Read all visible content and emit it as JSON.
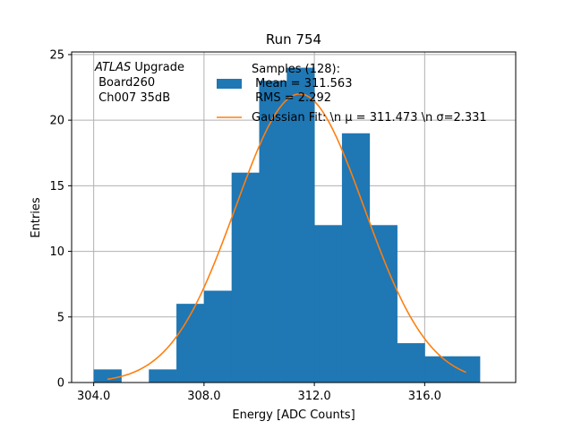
{
  "chart_data": {
    "type": "histogram",
    "title": "Run 754",
    "xlabel": "Energy [ADC Counts]",
    "ylabel": "Entries",
    "xlim": [
      303.2,
      319.3
    ],
    "ylim": [
      0,
      25.2
    ],
    "grid": true,
    "xticks": [
      304.0,
      308.0,
      312.0,
      316.0
    ],
    "xtick_labels": [
      "304.0",
      "308.0",
      "312.0",
      "316.0"
    ],
    "yticks": [
      0,
      5,
      10,
      15,
      20,
      25
    ],
    "ytick_labels": [
      "0",
      "5",
      "10",
      "15",
      "20",
      "25"
    ],
    "bins": [
      {
        "x0": 304,
        "x1": 305,
        "count": 1
      },
      {
        "x0": 305,
        "x1": 306,
        "count": 0
      },
      {
        "x0": 306,
        "x1": 307,
        "count": 1
      },
      {
        "x0": 307,
        "x1": 308,
        "count": 6
      },
      {
        "x0": 308,
        "x1": 309,
        "count": 7
      },
      {
        "x0": 309,
        "x1": 310,
        "count": 16
      },
      {
        "x0": 310,
        "x1": 311,
        "count": 23
      },
      {
        "x0": 311,
        "x1": 312,
        "count": 24
      },
      {
        "x0": 312,
        "x1": 313,
        "count": 12
      },
      {
        "x0": 313,
        "x1": 314,
        "count": 19
      },
      {
        "x0": 314,
        "x1": 315,
        "count": 12
      },
      {
        "x0": 315,
        "x1": 316,
        "count": 3
      },
      {
        "x0": 316,
        "x1": 317,
        "count": 2
      },
      {
        "x0": 317,
        "x1": 318,
        "count": 2
      }
    ],
    "fit": {
      "mu": 311.473,
      "sigma": 2.331,
      "amplitude": 22.0,
      "x_start": 304.5,
      "x_end": 317.5
    },
    "colors": {
      "bars": "#1f77b4",
      "fit": "#ff7f0e",
      "grid": "#b0b0b0"
    },
    "annotation": {
      "line1_italic": "ATLAS",
      "line1_rest": " Upgrade",
      "line2": " Board260",
      "line3": " Ch007 35dB"
    },
    "legend": {
      "position": "top-right",
      "hist_lines": [
        "Samples (128):",
        " Mean = 311.563",
        " RMS = 2.292"
      ],
      "fit_label": "Gaussian Fit: \\n μ = 311.473 \\n σ=2.331"
    }
  }
}
